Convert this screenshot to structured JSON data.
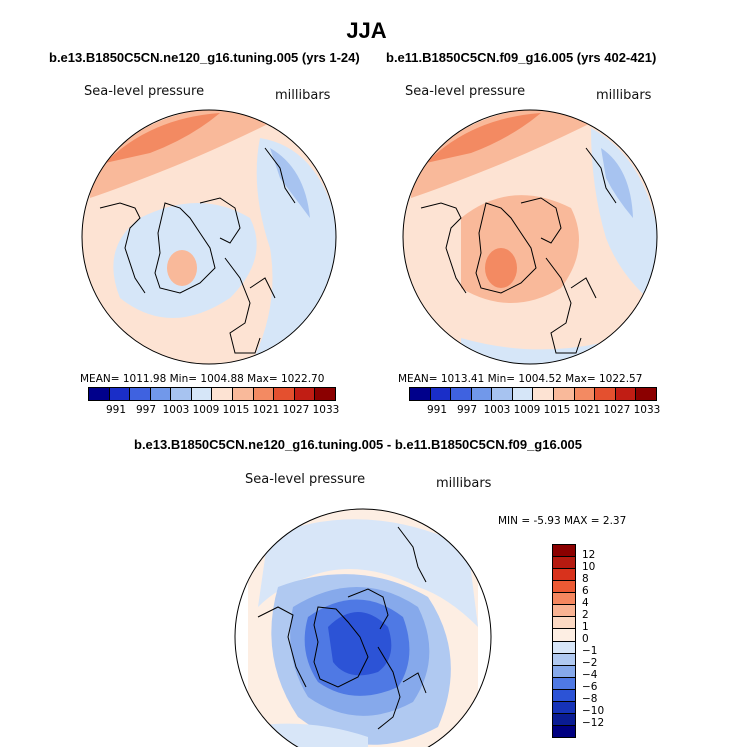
{
  "chart_data": [
    {
      "type": "heatmap",
      "title": "JJA",
      "subtitle": "b.e13.B1850C5CN.ne120_g16.tuning.005 (yrs 1-24)",
      "left_label": "Sea-level pressure",
      "right_label": "millibars",
      "stats": {
        "mean": "1011.98",
        "min": "1004.88",
        "max": "1022.70"
      },
      "stats_text": "MEAN= 1011.98   Min= 1004.88   Max= 1022.70",
      "colorbar_levels": [
        "991",
        "997",
        "1003",
        "1009",
        "1015",
        "1021",
        "1027",
        "1033"
      ],
      "colorbar_colors": [
        "#00008b",
        "#1a2ec8",
        "#3f62e0",
        "#7198ea",
        "#a7c3f0",
        "#d6e6f8",
        "#fde3d3",
        "#f9b99a",
        "#f38a62",
        "#e4502f",
        "#c11d14",
        "#8b0000"
      ],
      "projection": "polar stereographic, North Pole"
    },
    {
      "type": "heatmap",
      "subtitle": "b.e11.B1850C5CN.f09_g16.005 (yrs 402-421)",
      "left_label": "Sea-level pressure",
      "right_label": "millibars",
      "stats": {
        "mean": "1013.41",
        "min": "1004.52",
        "max": "1022.57"
      },
      "stats_text": "MEAN= 1013.41   Min= 1004.52   Max= 1022.57",
      "colorbar_levels": [
        "991",
        "997",
        "1003",
        "1009",
        "1015",
        "1021",
        "1027",
        "1033"
      ],
      "colorbar_colors": [
        "#00008b",
        "#1a2ec8",
        "#3f62e0",
        "#7198ea",
        "#a7c3f0",
        "#d6e6f8",
        "#fde3d3",
        "#f9b99a",
        "#f38a62",
        "#e4502f",
        "#c11d14",
        "#8b0000"
      ],
      "projection": "polar stereographic, North Pole"
    },
    {
      "type": "heatmap",
      "subtitle": "b.e13.B1850C5CN.ne120_g16.tuning.005 - b.e11.B1850C5CN.f09_g16.005",
      "left_label": "Sea-level pressure",
      "right_label": "millibars",
      "stats": {
        "min": "-5.93",
        "max": "2.37"
      },
      "stats_text": "MIN =   -5.93  MAX =    2.37",
      "colorbar_levels": [
        "12",
        "10",
        "8",
        "6",
        "4",
        "2",
        "1",
        "0",
        "−1",
        "−2",
        "−4",
        "−6",
        "−8",
        "−10",
        "−12"
      ],
      "colorbar_colors": [
        "#8b0000",
        "#b51a10",
        "#d8321c",
        "#ec5a34",
        "#f5875f",
        "#f9b393",
        "#fcd9c3",
        "#fdeee3",
        "#d8e6f8",
        "#b0c9f1",
        "#86a9eb",
        "#4f79e4",
        "#2c53d6",
        "#1633b8",
        "#0a1c93",
        "#000080"
      ],
      "projection": "polar stereographic, North Pole"
    }
  ]
}
